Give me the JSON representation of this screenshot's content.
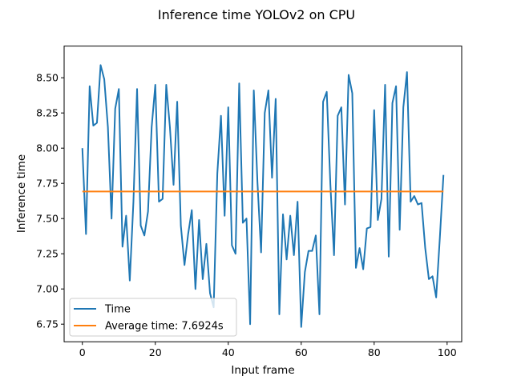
{
  "chart_data": {
    "type": "line",
    "title": "Inference time YOLOv2 on CPU",
    "xlabel": "Input frame",
    "ylabel": "Inference time",
    "xlim": [
      -5,
      104
    ],
    "ylim": [
      6.625,
      8.725
    ],
    "xticks": [
      0,
      20,
      40,
      60,
      80,
      100
    ],
    "yticks": [
      6.75,
      7.0,
      7.25,
      7.5,
      7.75,
      8.0,
      8.25,
      8.5
    ],
    "ytick_labels": [
      "6.75",
      "7.00",
      "7.25",
      "7.50",
      "7.75",
      "8.00",
      "8.25",
      "8.50"
    ],
    "grid": false,
    "legend_position": "lower-left",
    "series": [
      {
        "name": "Time",
        "color": "#1f77b4",
        "x": [
          0,
          1,
          2,
          3,
          4,
          5,
          6,
          7,
          8,
          9,
          10,
          11,
          12,
          13,
          14,
          15,
          16,
          17,
          18,
          19,
          20,
          21,
          22,
          23,
          24,
          25,
          26,
          27,
          28,
          29,
          30,
          31,
          32,
          33,
          34,
          35,
          36,
          37,
          38,
          39,
          40,
          41,
          42,
          43,
          44,
          45,
          46,
          47,
          48,
          49,
          50,
          51,
          52,
          53,
          54,
          55,
          56,
          57,
          58,
          59,
          60,
          61,
          62,
          63,
          64,
          65,
          66,
          67,
          68,
          69,
          70,
          71,
          72,
          73,
          74,
          75,
          76,
          77,
          78,
          79,
          80,
          81,
          82,
          83,
          84,
          85,
          86,
          87,
          88,
          89,
          90,
          91,
          92,
          93,
          94,
          95,
          96,
          97,
          98,
          99
        ],
        "y": [
          8.0,
          7.39,
          8.44,
          8.16,
          8.18,
          8.59,
          8.49,
          8.15,
          7.5,
          8.28,
          8.42,
          7.3,
          7.52,
          7.06,
          7.62,
          8.42,
          7.45,
          7.38,
          7.55,
          8.15,
          8.45,
          7.62,
          7.64,
          8.45,
          8.15,
          7.74,
          8.33,
          7.45,
          7.17,
          7.39,
          7.56,
          7.0,
          7.49,
          7.07,
          7.32,
          6.97,
          6.87,
          7.82,
          8.23,
          7.52,
          8.29,
          7.31,
          7.25,
          8.46,
          7.47,
          7.5,
          6.75,
          8.41,
          7.76,
          7.26,
          8.25,
          8.41,
          7.79,
          8.35,
          6.82,
          7.53,
          7.21,
          7.52,
          7.24,
          7.62,
          6.73,
          7.12,
          7.27,
          7.27,
          7.38,
          6.82,
          8.33,
          8.4,
          7.74,
          7.24,
          8.23,
          8.29,
          7.6,
          8.52,
          8.39,
          7.15,
          7.29,
          7.14,
          7.43,
          7.44,
          8.27,
          7.49,
          7.64,
          8.45,
          7.23,
          8.32,
          8.44,
          7.42,
          8.29,
          8.54,
          7.62,
          7.66,
          7.6,
          7.61,
          7.29,
          7.07,
          7.09,
          6.94,
          7.36,
          7.81
        ]
      },
      {
        "name": "Average time: 7.6924s",
        "color": "#ff7f0e",
        "x": [
          0,
          99
        ],
        "y": [
          7.6924,
          7.6924
        ]
      }
    ]
  }
}
